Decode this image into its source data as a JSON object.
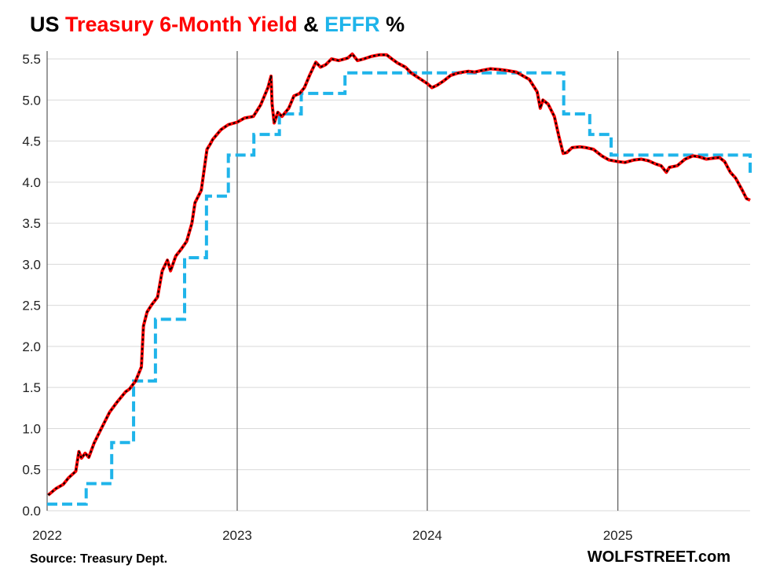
{
  "title_parts": {
    "prefix": "US ",
    "series1": "Treasury 6-Month Yield",
    "amp": " & ",
    "series2": "EFFR",
    "suffix": " %"
  },
  "colors": {
    "yield": "#ff0000",
    "yield_outline": "#000000",
    "effr": "#1fb4ea",
    "text": "#000000",
    "grid_h": "#d9d9d9",
    "grid_v": "#595959"
  },
  "source": "Source: Treasury Dept.",
  "brand": "WOLFSTREET.com",
  "chart_data": {
    "type": "line",
    "title": "US Treasury 6-Month Yield & EFFR %",
    "xlabel": "",
    "ylabel": "",
    "xlim": [
      "2022-01-01",
      "2025-09-12"
    ],
    "ylim": [
      0,
      5.5
    ],
    "yticks": [
      "0.0",
      "0.5",
      "1.0",
      "1.5",
      "2.0",
      "2.5",
      "3.0",
      "3.5",
      "4.0",
      "4.5",
      "5.0",
      "5.5"
    ],
    "xticks": [
      {
        "date": "2022-01-01",
        "label": "2022"
      },
      {
        "date": "2023-01-01",
        "label": "2023"
      },
      {
        "date": "2024-01-01",
        "label": "2024"
      },
      {
        "date": "2025-01-01",
        "label": "2025"
      }
    ],
    "grid": {
      "horizontal": true,
      "vertical_at_year_starts": true
    },
    "series": [
      {
        "name": "Treasury 6-Month Yield",
        "style": "solid",
        "color": "#ff0000",
        "points": [
          [
            "2022-01-03",
            0.19
          ],
          [
            "2022-01-18",
            0.27
          ],
          [
            "2022-02-01",
            0.32
          ],
          [
            "2022-02-11",
            0.4
          ],
          [
            "2022-02-25",
            0.48
          ],
          [
            "2022-03-03",
            0.72
          ],
          [
            "2022-03-08",
            0.64
          ],
          [
            "2022-03-15",
            0.7
          ],
          [
            "2022-03-22",
            0.65
          ],
          [
            "2022-04-01",
            0.82
          ],
          [
            "2022-04-15",
            1.0
          ],
          [
            "2022-05-01",
            1.2
          ],
          [
            "2022-05-15",
            1.32
          ],
          [
            "2022-06-01",
            1.45
          ],
          [
            "2022-06-08",
            1.48
          ],
          [
            "2022-06-20",
            1.58
          ],
          [
            "2022-07-01",
            1.75
          ],
          [
            "2022-07-05",
            2.25
          ],
          [
            "2022-07-12",
            2.42
          ],
          [
            "2022-07-20",
            2.5
          ],
          [
            "2022-08-01",
            2.6
          ],
          [
            "2022-08-10",
            2.92
          ],
          [
            "2022-08-20",
            3.05
          ],
          [
            "2022-08-26",
            2.92
          ],
          [
            "2022-09-05",
            3.1
          ],
          [
            "2022-09-15",
            3.18
          ],
          [
            "2022-09-26",
            3.28
          ],
          [
            "2022-10-06",
            3.5
          ],
          [
            "2022-10-12",
            3.75
          ],
          [
            "2022-10-24",
            3.9
          ],
          [
            "2022-11-04",
            4.4
          ],
          [
            "2022-11-10",
            4.46
          ],
          [
            "2022-11-15",
            4.52
          ],
          [
            "2022-12-01",
            4.64
          ],
          [
            "2022-12-15",
            4.7
          ],
          [
            "2023-01-01",
            4.73
          ],
          [
            "2023-01-15",
            4.78
          ],
          [
            "2023-02-01",
            4.8
          ],
          [
            "2023-02-15",
            4.94
          ],
          [
            "2023-03-01",
            5.15
          ],
          [
            "2023-03-07",
            5.29
          ],
          [
            "2023-03-09",
            4.95
          ],
          [
            "2023-03-13",
            4.72
          ],
          [
            "2023-03-20",
            4.85
          ],
          [
            "2023-03-28",
            4.8
          ],
          [
            "2023-04-10",
            4.9
          ],
          [
            "2023-04-20",
            5.05
          ],
          [
            "2023-05-01",
            5.08
          ],
          [
            "2023-05-10",
            5.15
          ],
          [
            "2023-05-20",
            5.3
          ],
          [
            "2023-06-01",
            5.46
          ],
          [
            "2023-06-10",
            5.4
          ],
          [
            "2023-06-20",
            5.43
          ],
          [
            "2023-07-01",
            5.5
          ],
          [
            "2023-07-15",
            5.48
          ],
          [
            "2023-08-01",
            5.51
          ],
          [
            "2023-08-10",
            5.56
          ],
          [
            "2023-08-20",
            5.48
          ],
          [
            "2023-09-01",
            5.5
          ],
          [
            "2023-09-15",
            5.53
          ],
          [
            "2023-10-01",
            5.55
          ],
          [
            "2023-10-15",
            5.55
          ],
          [
            "2023-10-25",
            5.5
          ],
          [
            "2023-11-05",
            5.45
          ],
          [
            "2023-11-20",
            5.4
          ],
          [
            "2023-12-01",
            5.33
          ],
          [
            "2023-12-20",
            5.25
          ],
          [
            "2024-01-01",
            5.2
          ],
          [
            "2024-01-10",
            5.15
          ],
          [
            "2024-01-20",
            5.18
          ],
          [
            "2024-02-01",
            5.23
          ],
          [
            "2024-02-15",
            5.3
          ],
          [
            "2024-03-01",
            5.33
          ],
          [
            "2024-03-20",
            5.35
          ],
          [
            "2024-04-01",
            5.34
          ],
          [
            "2024-04-15",
            5.36
          ],
          [
            "2024-05-01",
            5.38
          ],
          [
            "2024-05-20",
            5.37
          ],
          [
            "2024-06-01",
            5.36
          ],
          [
            "2024-06-20",
            5.34
          ],
          [
            "2024-07-01",
            5.3
          ],
          [
            "2024-07-15",
            5.25
          ],
          [
            "2024-07-30",
            5.1
          ],
          [
            "2024-08-05",
            4.9
          ],
          [
            "2024-08-10",
            5.0
          ],
          [
            "2024-08-20",
            4.95
          ],
          [
            "2024-09-01",
            4.8
          ],
          [
            "2024-09-10",
            4.55
          ],
          [
            "2024-09-18",
            4.35
          ],
          [
            "2024-09-25",
            4.36
          ],
          [
            "2024-10-05",
            4.42
          ],
          [
            "2024-10-20",
            4.43
          ],
          [
            "2024-11-01",
            4.42
          ],
          [
            "2024-11-15",
            4.4
          ],
          [
            "2024-12-01",
            4.32
          ],
          [
            "2024-12-15",
            4.27
          ],
          [
            "2025-01-01",
            4.25
          ],
          [
            "2025-01-15",
            4.24
          ],
          [
            "2025-02-01",
            4.27
          ],
          [
            "2025-02-15",
            4.28
          ],
          [
            "2025-03-01",
            4.26
          ],
          [
            "2025-03-15",
            4.22
          ],
          [
            "2025-03-25",
            4.2
          ],
          [
            "2025-04-04",
            4.12
          ],
          [
            "2025-04-10",
            4.18
          ],
          [
            "2025-04-25",
            4.2
          ],
          [
            "2025-05-10",
            4.28
          ],
          [
            "2025-05-25",
            4.32
          ],
          [
            "2025-06-05",
            4.31
          ],
          [
            "2025-06-20",
            4.28
          ],
          [
            "2025-07-01",
            4.29
          ],
          [
            "2025-07-15",
            4.3
          ],
          [
            "2025-07-25",
            4.25
          ],
          [
            "2025-08-05",
            4.12
          ],
          [
            "2025-08-15",
            4.05
          ],
          [
            "2025-08-28",
            3.9
          ],
          [
            "2025-09-05",
            3.8
          ],
          [
            "2025-09-12",
            3.78
          ]
        ]
      },
      {
        "name": "EFFR",
        "style": "dashed-step",
        "color": "#1fb4ea",
        "steps": [
          [
            "2022-01-01",
            0.08
          ],
          [
            "2022-03-17",
            0.33
          ],
          [
            "2022-05-05",
            0.83
          ],
          [
            "2022-06-16",
            1.58
          ],
          [
            "2022-07-28",
            2.33
          ],
          [
            "2022-09-22",
            3.08
          ],
          [
            "2022-11-03",
            3.83
          ],
          [
            "2022-12-15",
            4.33
          ],
          [
            "2023-02-02",
            4.58
          ],
          [
            "2023-03-23",
            4.83
          ],
          [
            "2023-05-04",
            5.08
          ],
          [
            "2023-07-27",
            5.33
          ],
          [
            "2024-09-19",
            4.83
          ],
          [
            "2024-11-08",
            4.58
          ],
          [
            "2024-12-19",
            4.33
          ],
          [
            "2025-09-12",
            4.08
          ]
        ]
      }
    ]
  }
}
